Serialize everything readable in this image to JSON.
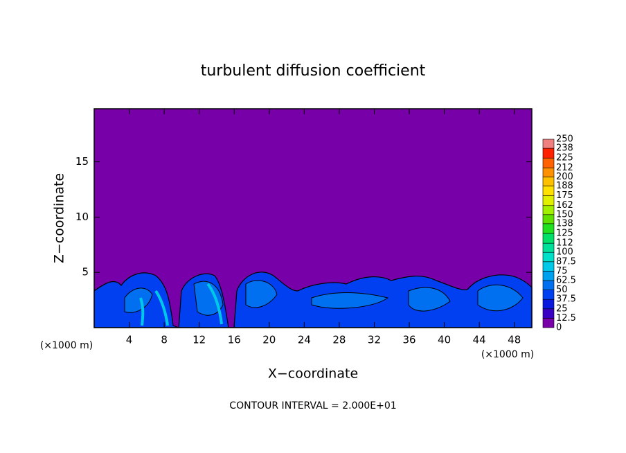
{
  "chart_data": {
    "type": "contour",
    "title": "turbulent diffusion coefficient",
    "x_label": "X−coordinate",
    "y_label": "Z−coordinate",
    "x_unit": "(×1000 m)",
    "x_unit_right": "(×1000 m)",
    "note": "CONTOUR INTERVAL = 2.000E+01",
    "xlim": [
      0,
      50
    ],
    "xticks": [
      4,
      8,
      12,
      16,
      20,
      24,
      28,
      32,
      36,
      40,
      44,
      48
    ],
    "ylim": [
      0,
      19.8
    ],
    "yticks": [
      5,
      10,
      15
    ],
    "colorbar": {
      "levels": [
        0,
        12.5,
        25,
        37.5,
        50,
        62.5,
        75,
        87.5,
        100,
        112,
        125,
        138,
        150,
        162,
        175,
        188,
        200,
        212,
        225,
        238,
        250
      ],
      "colors": [
        "#7800a8",
        "#3a00c4",
        "#0818dc",
        "#0040f0",
        "#0070f0",
        "#00a0f0",
        "#00c8e8",
        "#00e0c8",
        "#00e098",
        "#00e068",
        "#20e020",
        "#60e000",
        "#a0f000",
        "#e0f000",
        "#ffe000",
        "#ffc000",
        "#ff9000",
        "#ff6000",
        "#ff2000",
        "#f08080"
      ]
    }
  }
}
